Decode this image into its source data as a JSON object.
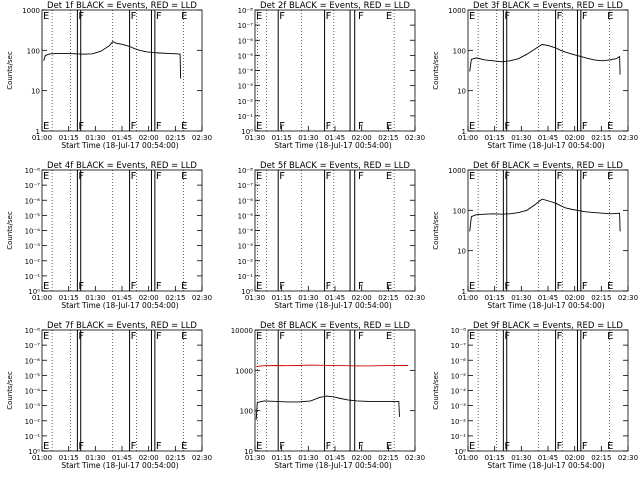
{
  "chart_data": [
    {
      "type": "line",
      "title": "Det 1f BLACK = Events, RED = LLD",
      "ylabel": "Counts/sec",
      "xlabel": "Start Time (18-Jul-17 00:54:00)",
      "yscale": "log",
      "ylim": [
        1,
        1000
      ],
      "ytick_labels": [
        "1",
        "10",
        "100",
        "1000"
      ],
      "xlim_min": [
        0,
        95
      ],
      "xtick_labels": [
        "01:00",
        "01:15",
        "01:30",
        "01:45",
        "02:00",
        "02:15",
        "02:30"
      ],
      "markers": [
        {
          "label": "E",
          "t": 0
        },
        {
          "label": "F",
          "t": 21
        },
        {
          "label": "F",
          "t": 52
        },
        {
          "label": "F",
          "t": 67
        },
        {
          "label": "E",
          "t": 82
        }
      ],
      "solid_lines": [
        21,
        23,
        52,
        65,
        67
      ],
      "dotted_lines": [
        0,
        6,
        17,
        42,
        56,
        84
      ],
      "series": [
        {
          "color": "#000000",
          "points": [
            [
              1,
              55
            ],
            [
              2,
              75
            ],
            [
              5,
              82
            ],
            [
              10,
              84
            ],
            [
              15,
              84
            ],
            [
              20,
              82
            ],
            [
              25,
              80
            ],
            [
              30,
              82
            ],
            [
              35,
              95
            ],
            [
              40,
              130
            ],
            [
              42,
              165
            ],
            [
              44,
              150
            ],
            [
              48,
              140
            ],
            [
              52,
              125
            ],
            [
              55,
              110
            ],
            [
              58,
              100
            ],
            [
              62,
              92
            ],
            [
              66,
              88
            ],
            [
              70,
              86
            ],
            [
              75,
              84
            ],
            [
              80,
              82
            ],
            [
              82,
              80
            ],
            [
              82.3,
              20
            ]
          ]
        }
      ]
    },
    {
      "type": "line",
      "title": "Det 2f BLACK = Events, RED = LLD",
      "ylabel": "",
      "xlabel": "Start Time (18-Jul-17 00:54:00)",
      "yscale": "log",
      "ylim": [
        1,
        1e-08
      ],
      "ytick_labels": [
        "10⁰",
        "10⁻¹",
        "10⁻²",
        "10⁻³",
        "10⁻⁴",
        "10⁻⁵",
        "10⁻⁶",
        "10⁻⁷",
        "10⁻⁸"
      ],
      "xlim_min": [
        26,
        95
      ],
      "xtick_labels": [
        "01:30",
        "01:15",
        "01:30",
        "01:45",
        "02:00",
        "02:15",
        "02:30"
      ],
      "markers": [
        {
          "label": "E",
          "t": 26
        },
        {
          "label": "F",
          "t": 36
        },
        {
          "label": "F",
          "t": 56
        },
        {
          "label": "F",
          "t": 70
        },
        {
          "label": "E",
          "t": 82
        }
      ],
      "solid_lines": [
        36,
        56,
        67,
        69
      ],
      "dotted_lines": [
        27,
        31,
        46,
        60,
        86
      ],
      "series": []
    },
    {
      "type": "line",
      "title": "Det 3f BLACK = Events, RED = LLD",
      "ylabel": "Counts/sec",
      "xlabel": "Start Time (18-Jul-17 00:54:00)",
      "yscale": "log",
      "ylim": [
        1,
        1000
      ],
      "ytick_labels": [
        "1",
        "10",
        "100",
        "1000"
      ],
      "xlim_min": [
        0,
        95
      ],
      "xtick_labels": [
        "01:00",
        "01:15",
        "01:30",
        "01:45",
        "02:00",
        "02:15",
        "02:30"
      ],
      "markers": [
        {
          "label": "E",
          "t": 0
        },
        {
          "label": "F",
          "t": 21
        },
        {
          "label": "F",
          "t": 52
        },
        {
          "label": "F",
          "t": 67
        },
        {
          "label": "E",
          "t": 82
        }
      ],
      "solid_lines": [
        21,
        23,
        52,
        65,
        67
      ],
      "dotted_lines": [
        6,
        17,
        42,
        56,
        84
      ],
      "series": [
        {
          "color": "#000000",
          "points": [
            [
              1,
              30
            ],
            [
              2,
              60
            ],
            [
              5,
              65
            ],
            [
              10,
              58
            ],
            [
              15,
              55
            ],
            [
              20,
              52
            ],
            [
              25,
              55
            ],
            [
              30,
              62
            ],
            [
              35,
              80
            ],
            [
              40,
              110
            ],
            [
              44,
              140
            ],
            [
              48,
              130
            ],
            [
              52,
              115
            ],
            [
              55,
              100
            ],
            [
              58,
              90
            ],
            [
              62,
              80
            ],
            [
              66,
              72
            ],
            [
              70,
              65
            ],
            [
              75,
              58
            ],
            [
              80,
              55
            ],
            [
              84,
              58
            ],
            [
              88,
              62
            ],
            [
              90,
              70
            ],
            [
              90.3,
              25
            ]
          ]
        }
      ]
    },
    {
      "type": "line",
      "title": "Det 4f BLACK = Events, RED = LLD",
      "ylabel": "Counts/sec",
      "xlabel": "Start Time (18-Jul-17 00:54:00)",
      "yscale": "log",
      "ylim": [
        1,
        1e-08
      ],
      "ytick_labels": [
        "10⁰",
        "10⁻¹",
        "10⁻²",
        "10⁻³",
        "10⁻⁴",
        "10⁻⁵",
        "10⁻⁶",
        "10⁻⁷",
        "10⁻⁸"
      ],
      "xlim_min": [
        0,
        95
      ],
      "xtick_labels": [
        "01:00",
        "01:15",
        "01:30",
        "01:45",
        "02:00",
        "02:15",
        "02:30"
      ],
      "markers": [
        {
          "label": "E",
          "t": 0
        },
        {
          "label": "F",
          "t": 21
        },
        {
          "label": "F",
          "t": 52
        },
        {
          "label": "F",
          "t": 67
        },
        {
          "label": "E",
          "t": 82
        }
      ],
      "solid_lines": [
        21,
        23,
        52,
        65,
        67
      ],
      "dotted_lines": [
        6,
        17,
        42,
        56,
        84
      ],
      "series": []
    },
    {
      "type": "line",
      "title": "Det 5f BLACK = Events, RED = LLD",
      "ylabel": "",
      "xlabel": "Start Time (18-Jul-17 00:54:00)",
      "yscale": "log",
      "ylim": [
        1,
        1e-08
      ],
      "ytick_labels": [
        "10⁰",
        "10⁻¹",
        "10⁻²",
        "10⁻³",
        "10⁻⁴",
        "10⁻⁵",
        "10⁻⁶",
        "10⁻⁷",
        "10⁻⁸"
      ],
      "xlim_min": [
        26,
        95
      ],
      "xtick_labels": [
        "01:30",
        "01:15",
        "01:30",
        "01:45",
        "02:00",
        "02:15",
        "02:30"
      ],
      "markers": [
        {
          "label": "E",
          "t": 26
        },
        {
          "label": "F",
          "t": 36
        },
        {
          "label": "F",
          "t": 56
        },
        {
          "label": "F",
          "t": 70
        },
        {
          "label": "E",
          "t": 82
        }
      ],
      "solid_lines": [
        36,
        56,
        67,
        69
      ],
      "dotted_lines": [
        27,
        31,
        46,
        60,
        86
      ],
      "series": []
    },
    {
      "type": "line",
      "title": "Det 6f BLACK = Events, RED = LLD",
      "ylabel": "Counts/sec",
      "xlabel": "Start Time (18-Jul-17 00:54:00)",
      "yscale": "log",
      "ylim": [
        1,
        1000
      ],
      "ytick_labels": [
        "1",
        "10",
        "100",
        "1000"
      ],
      "xlim_min": [
        0,
        95
      ],
      "xtick_labels": [
        "01:00",
        "01:15",
        "01:30",
        "01:45",
        "02:00",
        "02:15",
        "02:30"
      ],
      "markers": [
        {
          "label": "E",
          "t": 0
        },
        {
          "label": "F",
          "t": 21
        },
        {
          "label": "F",
          "t": 52
        },
        {
          "label": "F",
          "t": 67
        },
        {
          "label": "E",
          "t": 82
        }
      ],
      "solid_lines": [
        21,
        23,
        52,
        65,
        67
      ],
      "dotted_lines": [
        6,
        17,
        42,
        56,
        84
      ],
      "series": [
        {
          "color": "#000000",
          "points": [
            [
              1,
              30
            ],
            [
              2,
              70
            ],
            [
              5,
              78
            ],
            [
              10,
              80
            ],
            [
              15,
              82
            ],
            [
              20,
              80
            ],
            [
              25,
              82
            ],
            [
              30,
              88
            ],
            [
              35,
              100
            ],
            [
              40,
              140
            ],
            [
              44,
              190
            ],
            [
              48,
              170
            ],
            [
              52,
              150
            ],
            [
              55,
              130
            ],
            [
              58,
              115
            ],
            [
              62,
              105
            ],
            [
              66,
              98
            ],
            [
              70,
              92
            ],
            [
              75,
              88
            ],
            [
              80,
              85
            ],
            [
              85,
              82
            ],
            [
              88,
              84
            ],
            [
              90,
              85
            ],
            [
              90.3,
              30
            ]
          ]
        }
      ]
    },
    {
      "type": "line",
      "title": "Det 7f BLACK = Events, RED = LLD",
      "ylabel": "Counts/sec",
      "xlabel": "Start Time (18-Jul-17 00:54:00)",
      "yscale": "log",
      "ylim": [
        1,
        1e-08
      ],
      "ytick_labels": [
        "10⁰",
        "10⁻¹",
        "10⁻²",
        "10⁻³",
        "10⁻⁴",
        "10⁻⁵",
        "10⁻⁶",
        "10⁻⁷",
        "10⁻⁸"
      ],
      "xlim_min": [
        0,
        95
      ],
      "xtick_labels": [
        "01:00",
        "01:15",
        "01:30",
        "01:45",
        "02:00",
        "02:15",
        "02:30"
      ],
      "markers": [
        {
          "label": "E",
          "t": 0
        },
        {
          "label": "F",
          "t": 21
        },
        {
          "label": "F",
          "t": 52
        },
        {
          "label": "F",
          "t": 67
        },
        {
          "label": "E",
          "t": 82
        }
      ],
      "solid_lines": [
        21,
        23,
        52,
        65,
        67
      ],
      "dotted_lines": [
        6,
        17,
        42,
        56,
        84
      ],
      "series": []
    },
    {
      "type": "line",
      "title": "Det 8f BLACK = Events, RED = LLD",
      "ylabel": "",
      "xlabel": "Start Time (18-Jul-17 00:54:00)",
      "yscale": "log",
      "ylim": [
        10,
        10000
      ],
      "ytick_labels": [
        "10",
        "100",
        "1000",
        "10000"
      ],
      "xlim_min": [
        26,
        95
      ],
      "xtick_labels": [
        "01:30",
        "01:15",
        "01:30",
        "01:45",
        "02:00",
        "02:15",
        "02:30"
      ],
      "markers": [
        {
          "label": "E",
          "t": 26
        },
        {
          "label": "F",
          "t": 36
        },
        {
          "label": "F",
          "t": 56
        },
        {
          "label": "F",
          "t": 70
        },
        {
          "label": "E",
          "t": 82
        }
      ],
      "solid_lines": [
        36,
        56,
        67,
        69
      ],
      "dotted_lines": [
        27,
        31,
        46,
        60,
        86
      ],
      "series": [
        {
          "color": "#cc0000",
          "points": [
            [
              26.5,
              1250
            ],
            [
              30,
              1300
            ],
            [
              35,
              1320
            ],
            [
              40,
              1300
            ],
            [
              45,
              1320
            ],
            [
              50,
              1350
            ],
            [
              55,
              1330
            ],
            [
              60,
              1310
            ],
            [
              65,
              1300
            ],
            [
              70,
              1290
            ],
            [
              75,
              1290
            ],
            [
              80,
              1300
            ],
            [
              85,
              1310
            ],
            [
              90,
              1320
            ],
            [
              92,
              1320
            ]
          ]
        },
        {
          "color": "#000000",
          "points": [
            [
              26.5,
              60
            ],
            [
              27,
              160
            ],
            [
              30,
              175
            ],
            [
              35,
              170
            ],
            [
              40,
              165
            ],
            [
              45,
              165
            ],
            [
              50,
              175
            ],
            [
              54,
              215
            ],
            [
              57,
              230
            ],
            [
              60,
              220
            ],
            [
              63,
              200
            ],
            [
              66,
              185
            ],
            [
              70,
              175
            ],
            [
              75,
              170
            ],
            [
              80,
              170
            ],
            [
              85,
              170
            ],
            [
              88,
              170
            ],
            [
              88.3,
              70
            ]
          ]
        }
      ]
    },
    {
      "type": "line",
      "title": "Det 9f BLACK = Events, RED = LLD",
      "ylabel": "Counts/sec",
      "xlabel": "Start Time (18-Jul-17 00:54:00)",
      "yscale": "log",
      "ylim": [
        1,
        1e-08
      ],
      "ytick_labels": [
        "10⁰",
        "10⁻¹",
        "10⁻²",
        "10⁻³",
        "10⁻⁴",
        "10⁻⁵",
        "10⁻⁶",
        "10⁻⁷",
        "10⁻⁸"
      ],
      "xlim_min": [
        0,
        95
      ],
      "xtick_labels": [
        "01:00",
        "01:15",
        "01:30",
        "01:45",
        "02:00",
        "02:15",
        "02:30"
      ],
      "markers": [
        {
          "label": "E",
          "t": 0
        },
        {
          "label": "F",
          "t": 21
        },
        {
          "label": "F",
          "t": 52
        },
        {
          "label": "F",
          "t": 67
        },
        {
          "label": "E",
          "t": 82
        }
      ],
      "solid_lines": [
        21,
        23,
        52,
        65,
        67
      ],
      "dotted_lines": [
        6,
        17,
        42,
        56,
        84
      ],
      "series": []
    }
  ]
}
